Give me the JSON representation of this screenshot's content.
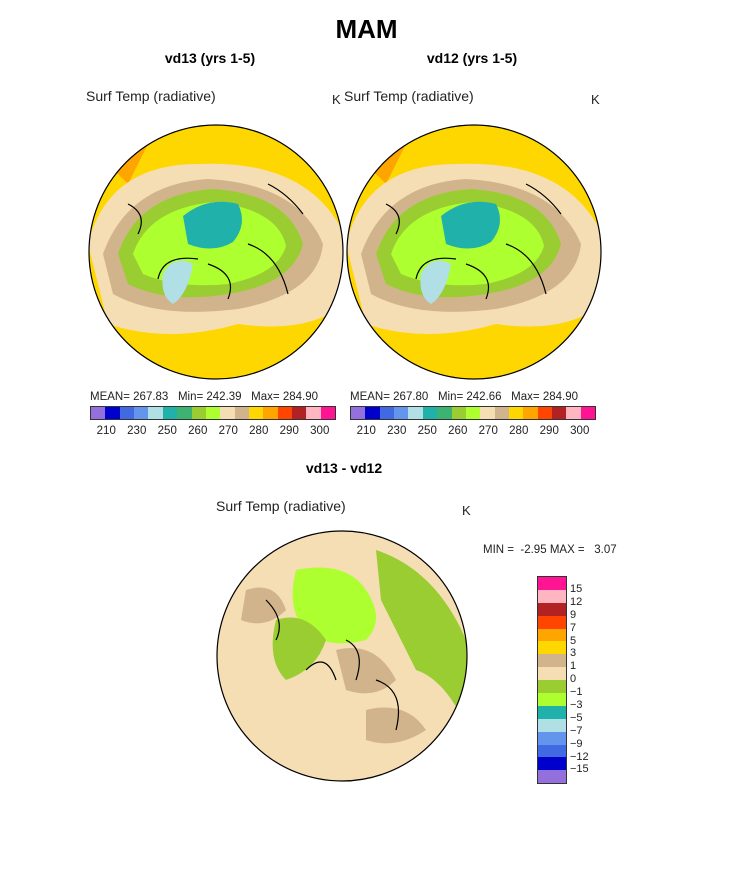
{
  "title": "MAM",
  "panels": [
    {
      "id": "vd13",
      "title": "vd13 (yrs 1-5)",
      "variable": "Surf Temp (radiative)",
      "units": "K",
      "stats": {
        "mean_label": "MEAN=",
        "mean": "267.83",
        "min_label": "Min=",
        "min": "242.39",
        "max_label": "Max=",
        "max": "284.90"
      }
    },
    {
      "id": "vd12",
      "title": "vd12 (yrs 1-5)",
      "variable": "Surf Temp (radiative)",
      "units": "K",
      "stats": {
        "mean_label": "MEAN=",
        "mean": "267.80",
        "min_label": "Min=",
        "min": "242.66",
        "max_label": "Max=",
        "max": "284.90"
      }
    }
  ],
  "abs_colorbar": {
    "colors": [
      "#9370db",
      "#0000cd",
      "#4169e1",
      "#6495ed",
      "#b0e0e6",
      "#20b2aa",
      "#3cb371",
      "#9acd32",
      "#adff2f",
      "#f5deb3",
      "#d2b48c",
      "#ffd700",
      "#ffa500",
      "#ff4500",
      "#b22222",
      "#ffb6c1",
      "#ff1493"
    ],
    "tick_labels": [
      "210",
      "230",
      "250",
      "260",
      "270",
      "280",
      "290",
      "300"
    ]
  },
  "diff_panel": {
    "title": "vd13 - vd12",
    "variable": "Surf Temp (radiative)",
    "units": "K",
    "stats": {
      "min_label": "MIN =",
      "min": "-2.95",
      "max_label": "MAX =",
      "max": "3.07"
    }
  },
  "diff_colorbar": {
    "colors": [
      "#ff1493",
      "#ffb6c1",
      "#b22222",
      "#ff4500",
      "#ffa500",
      "#ffd700",
      "#d2b48c",
      "#f5deb3",
      "#9acd32",
      "#adff2f",
      "#20b2aa",
      "#b0e0e6",
      "#6495ed",
      "#4169e1",
      "#0000cd",
      "#9370db"
    ],
    "tick_labels": [
      "15",
      "12",
      "9",
      "7",
      "5",
      "3",
      "1",
      "0",
      "−1",
      "−3",
      "−5",
      "−7",
      "−9",
      "−12",
      "−15"
    ]
  }
}
